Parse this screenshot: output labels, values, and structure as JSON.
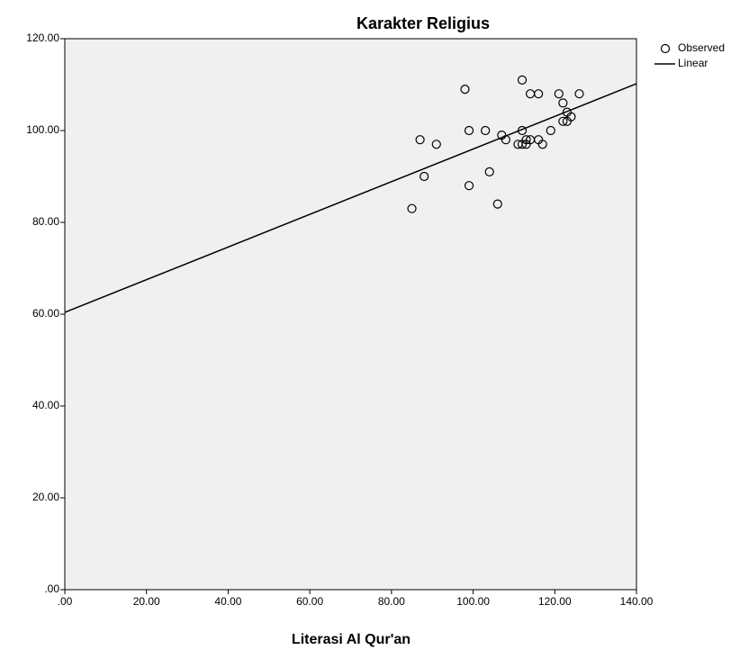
{
  "chart_data": {
    "type": "scatter",
    "title": "Karakter Religius",
    "x_label": "Literasi Al Qur'an",
    "xlim": [
      0,
      140
    ],
    "ylim": [
      0,
      120
    ],
    "xticks": [
      {
        "value": 0,
        "label": ".00"
      },
      {
        "value": 20,
        "label": "20.00"
      },
      {
        "value": 40,
        "label": "40.00"
      },
      {
        "value": 60,
        "label": "60.00"
      },
      {
        "value": 80,
        "label": "80.00"
      },
      {
        "value": 100,
        "label": "100.00"
      },
      {
        "value": 120,
        "label": "120.00"
      },
      {
        "value": 140,
        "label": "140.00"
      }
    ],
    "yticks": [
      {
        "value": 0,
        "label": ".00"
      },
      {
        "value": 20,
        "label": "20.00"
      },
      {
        "value": 40,
        "label": "40.00"
      },
      {
        "value": 60,
        "label": "60.00"
      },
      {
        "value": 80,
        "label": "80.00"
      },
      {
        "value": 100,
        "label": "100.00"
      },
      {
        "value": 120,
        "label": "120.00"
      }
    ],
    "legend": "right",
    "background": "#f0f0f0",
    "series": [
      {
        "name": "Observed",
        "type": "scatter",
        "color": "#000000",
        "x": [
          85,
          87,
          88,
          91,
          98,
          99,
          99,
          103,
          104,
          106,
          107,
          108,
          111,
          112,
          112,
          112,
          113,
          113,
          114,
          114,
          116,
          116,
          117,
          119,
          121,
          122,
          122,
          123,
          123,
          124,
          126
        ],
        "values": [
          83,
          98,
          90,
          97,
          109,
          100,
          88,
          100,
          91,
          84,
          99,
          98,
          97,
          111,
          100,
          97,
          98,
          97,
          108,
          98,
          108,
          98,
          97,
          100,
          108,
          106,
          102,
          104,
          102,
          103,
          108
        ]
      },
      {
        "name": "Linear",
        "type": "line",
        "color": "#000000",
        "x": [
          0,
          140
        ],
        "values": [
          60.4,
          110.2
        ]
      }
    ]
  }
}
